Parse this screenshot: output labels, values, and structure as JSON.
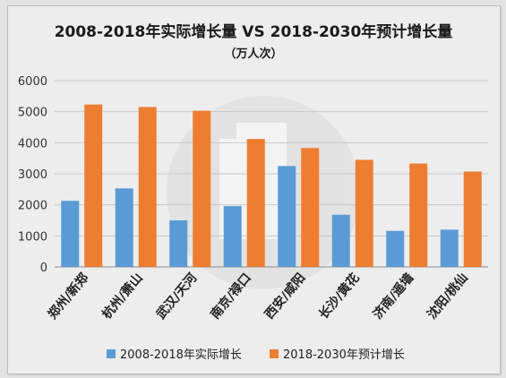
{
  "chart_data": {
    "type": "bar",
    "title": "2008-2018年实际增长量 VS 2018-2030年预计增长量",
    "subtitle": "（万人次）",
    "categories": [
      "郑州/新郑",
      "杭州/萧山",
      "武汉/天河",
      "南京/禄口",
      "西安/咸阳",
      "长沙/黄花",
      "济南/遥墙",
      "沈阳/桃仙"
    ],
    "series": [
      {
        "name": "2008-2018年实际增长",
        "color": "#5b9bd5",
        "values": [
          2130,
          2530,
          1500,
          1960,
          3250,
          1680,
          1160,
          1200
        ]
      },
      {
        "name": "2018-2030年预计增长",
        "color": "#ed7d31",
        "values": [
          5230,
          5150,
          5030,
          4120,
          3830,
          3450,
          3330,
          3070
        ]
      }
    ],
    "ylim": [
      0,
      6000
    ],
    "yticks": [
      0,
      1000,
      2000,
      3000,
      4000,
      5000,
      6000
    ],
    "grid": true,
    "legend_position": "bottom"
  }
}
